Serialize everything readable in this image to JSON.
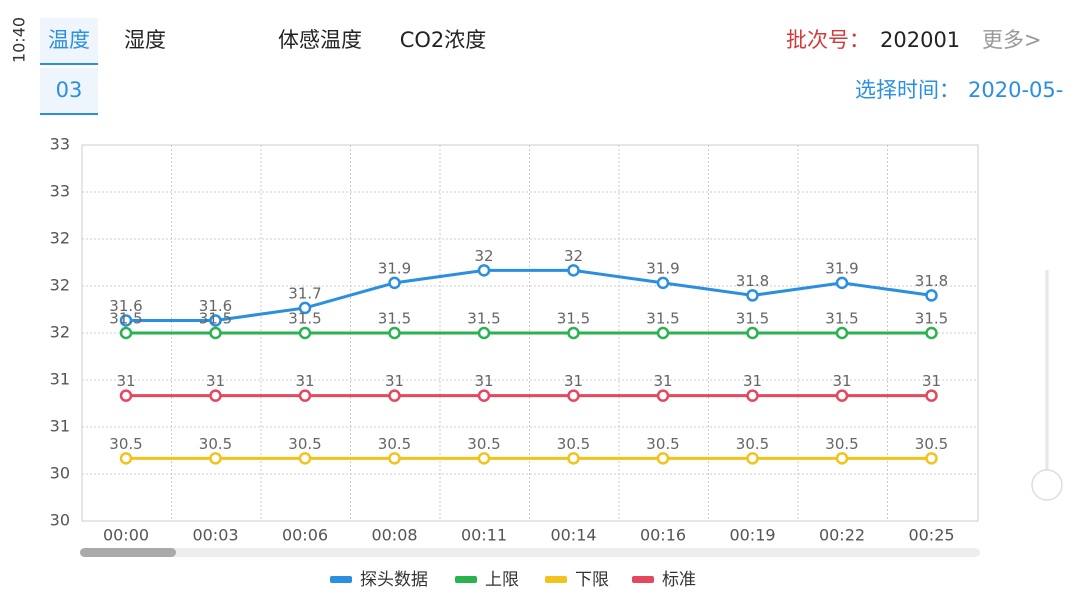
{
  "status": {
    "time": "10:40"
  },
  "tabs": [
    "温度",
    "湿度",
    "体感温度",
    "CO2浓度"
  ],
  "tab_date": "03",
  "batch_label": "批次号：",
  "batch": "202001",
  "more": "更多>",
  "time_label": "选择时间：",
  "time_value": "2020-05-",
  "chart_data": {
    "type": "line",
    "categories": [
      "00:00",
      "00:03",
      "00:06",
      "00:08",
      "00:11",
      "00:14",
      "00:16",
      "00:19",
      "00:22",
      "00:25"
    ],
    "ylim": [
      30,
      33
    ],
    "yticks": [
      30,
      {
        "value": 30.375,
        "label": "30"
      },
      {
        "value": 30.75,
        "label": "31"
      },
      {
        "value": 31.125,
        "label": "31"
      },
      {
        "value": 31.5,
        "label": "32"
      },
      {
        "value": 31.875,
        "label": "32"
      },
      {
        "value": 32.25,
        "label": "32"
      },
      {
        "value": 32.625,
        "label": "33"
      },
      33
    ],
    "grid": true,
    "series": [
      {
        "name": "探头数据",
        "color": "#2b8fe0",
        "values": [
          31.6,
          31.6,
          31.7,
          31.9,
          32,
          32,
          31.9,
          31.8,
          31.9,
          31.8
        ]
      },
      {
        "name": "上限",
        "color": "#2ab24f",
        "values": [
          31.5,
          31.5,
          31.5,
          31.5,
          31.5,
          31.5,
          31.5,
          31.5,
          31.5,
          31.5
        ]
      },
      {
        "name": "下限",
        "color": "#f2c31c",
        "values": [
          30.5,
          30.5,
          30.5,
          30.5,
          30.5,
          30.5,
          30.5,
          30.5,
          30.5,
          30.5
        ]
      },
      {
        "name": "标准",
        "color": "#e5475f",
        "values": [
          31,
          31,
          31,
          31,
          31,
          31,
          31,
          31,
          31,
          31
        ]
      }
    ]
  }
}
